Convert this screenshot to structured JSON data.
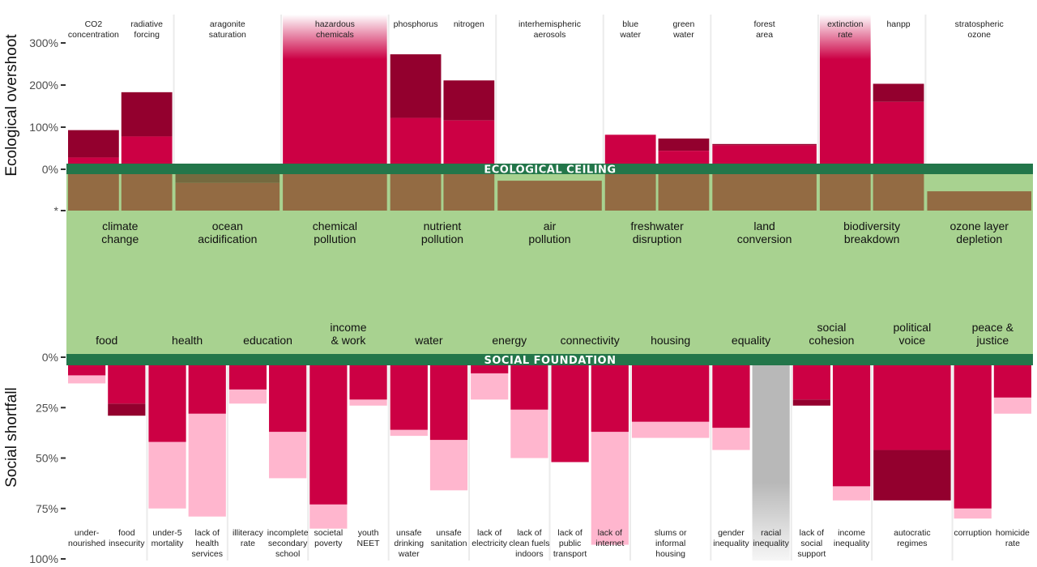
{
  "chart_data": {
    "type": "bar",
    "colors": {
      "overshoot": "#cc0044",
      "overshoot_extra": "#93002e",
      "shortfall": "#cc0044",
      "shortfall_range": "#ffb6ce",
      "shortfall_extra": "#93002e",
      "within_boundary": "#936b43",
      "uncertain": "#746a3f",
      "band": "#23764a",
      "safe_space": "#a8d290",
      "no_data": "#b8b8b8"
    },
    "ecological": {
      "ylabel": "Ecological overshoot",
      "ylim": [
        0,
        300
      ],
      "ticks": [
        "300%",
        "200%",
        "100%",
        "0%",
        "*"
      ],
      "band_label": "ECOLOGICAL CEILING",
      "groups": [
        {
          "label": [
            "climate",
            "change"
          ],
          "indicators": [
            {
              "label": [
                "CO2",
                "concentration"
              ],
              "value": 28,
              "extra": 93,
              "safe_level": 1
            },
            {
              "label": [
                "radiative",
                "forcing"
              ],
              "value": 78,
              "extra": 183,
              "safe_level": 1
            }
          ]
        },
        {
          "label": [
            "ocean",
            "acidification"
          ],
          "indicators": [
            {
              "label": [
                "aragonite",
                "saturation"
              ],
              "value": 0,
              "extra": 0,
              "safe_level": 0.76,
              "uncertain": true
            }
          ]
        },
        {
          "label": [
            "chemical",
            "pollution"
          ],
          "indicators": [
            {
              "label": [
                "hazardous",
                "chemicals"
              ],
              "value": null,
              "beyond_axis": true,
              "safe_level": 1
            }
          ]
        },
        {
          "label": [
            "nutrient",
            "pollution"
          ],
          "indicators": [
            {
              "label": [
                "phosphorus"
              ],
              "value": 122,
              "extra": 273,
              "safe_level": 1
            },
            {
              "label": [
                "nitrogen"
              ],
              "value": 116,
              "extra": 211,
              "safe_level": 1
            }
          ]
        },
        {
          "label": [
            "air",
            "pollution"
          ],
          "indicators": [
            {
              "label": [
                "interhemispheric",
                "aerosols"
              ],
              "value": 0,
              "extra": 0,
              "safe_level": 0.82
            }
          ]
        },
        {
          "label": [
            "freshwater",
            "disruption"
          ],
          "indicators": [
            {
              "label": [
                "blue",
                "water"
              ],
              "value": 82,
              "extra": 82,
              "safe_level": 1
            },
            {
              "label": [
                "green",
                "water"
              ],
              "value": 44,
              "extra": 73,
              "safe_level": 1
            }
          ]
        },
        {
          "label": [
            "land",
            "conversion"
          ],
          "indicators": [
            {
              "label": [
                "forest",
                "area"
              ],
              "value": 57,
              "extra": 60,
              "safe_level": 1
            }
          ]
        },
        {
          "label": [
            "biodiversity",
            "breakdown"
          ],
          "indicators": [
            {
              "label": [
                "extinction",
                "rate"
              ],
              "value": null,
              "beyond_axis": true,
              "safe_level": 1
            },
            {
              "label": [
                "hanpp"
              ],
              "value": 160,
              "extra": 203,
              "safe_level": 1
            }
          ]
        },
        {
          "label": [
            "ozone layer",
            "depletion"
          ],
          "indicators": [
            {
              "label": [
                "stratospheric",
                "ozone"
              ],
              "value": 0,
              "extra": 0,
              "safe_level": 0.53
            }
          ]
        }
      ]
    },
    "social": {
      "ylabel": "Social shortfall",
      "ylim": [
        0,
        100
      ],
      "ticks": [
        "0%",
        "25%",
        "50%",
        "75%",
        "100%"
      ],
      "band_label": "SOCIAL FOUNDATION",
      "groups": [
        {
          "label": [
            "food"
          ],
          "indicators": [
            {
              "label": [
                "under-",
                "nourished"
              ],
              "value": 9,
              "range": 13
            },
            {
              "label": [
                "food",
                "insecurity"
              ],
              "value": 23,
              "extra": 29
            }
          ]
        },
        {
          "label": [
            "health"
          ],
          "indicators": [
            {
              "label": [
                "under-5",
                "mortality"
              ],
              "value": 42,
              "range": 75
            },
            {
              "label": [
                "lack of",
                "health",
                "services"
              ],
              "value": 28,
              "range": 79
            }
          ]
        },
        {
          "label": [
            "education"
          ],
          "indicators": [
            {
              "label": [
                "illiteracy",
                "rate"
              ],
              "value": 16,
              "range": 23
            },
            {
              "label": [
                "incomplete",
                "secondary",
                "school"
              ],
              "value": 37,
              "range": 60
            }
          ]
        },
        {
          "label": [
            "income",
            "& work"
          ],
          "indicators": [
            {
              "label": [
                "societal",
                "poverty"
              ],
              "value": 73,
              "range": 85
            },
            {
              "label": [
                "youth",
                "NEET"
              ],
              "value": 21,
              "range": 24
            }
          ]
        },
        {
          "label": [
            "water"
          ],
          "indicators": [
            {
              "label": [
                "unsafe",
                "drinking",
                "water"
              ],
              "value": 36,
              "range": 39
            },
            {
              "label": [
                "unsafe",
                "sanitation"
              ],
              "value": 41,
              "range": 66
            }
          ]
        },
        {
          "label": [
            "energy"
          ],
          "indicators": [
            {
              "label": [
                "lack of",
                "electricity"
              ],
              "value": 8,
              "range": 21
            },
            {
              "label": [
                "lack of",
                "clean fuels",
                "indoors"
              ],
              "value": 26,
              "range": 50
            }
          ]
        },
        {
          "label": [
            "connectivity"
          ],
          "indicators": [
            {
              "label": [
                "lack of",
                "public",
                "transport"
              ],
              "value": 52
            },
            {
              "label": [
                "lack of",
                "internet"
              ],
              "value": 37,
              "range": 93
            }
          ]
        },
        {
          "label": [
            "housing"
          ],
          "indicators": [
            {
              "label": [
                "slums or",
                "informal",
                "housing"
              ],
              "value": 32,
              "range": 40
            }
          ]
        },
        {
          "label": [
            "equality"
          ],
          "indicators": [
            {
              "label": [
                "gender",
                "inequality"
              ],
              "value": 35,
              "range": 46
            },
            {
              "label": [
                "racial",
                "inequality"
              ],
              "value": null,
              "no_data": true
            }
          ]
        },
        {
          "label": [
            "social",
            "cohesion"
          ],
          "indicators": [
            {
              "label": [
                "lack of",
                "social",
                "support"
              ],
              "value": 21,
              "extra": 24
            },
            {
              "label": [
                "income",
                "inequality"
              ],
              "value": 64,
              "range": 71
            }
          ]
        },
        {
          "label": [
            "political",
            "voice"
          ],
          "indicators": [
            {
              "label": [
                "autocratic",
                "regimes"
              ],
              "value": 46,
              "extra": 71
            }
          ]
        },
        {
          "label": [
            "peace &",
            "justice"
          ],
          "indicators": [
            {
              "label": [
                "corruption"
              ],
              "value": 75,
              "range": 80
            },
            {
              "label": [
                "homicide",
                "rate"
              ],
              "value": 20,
              "range": 28
            }
          ]
        }
      ]
    }
  }
}
